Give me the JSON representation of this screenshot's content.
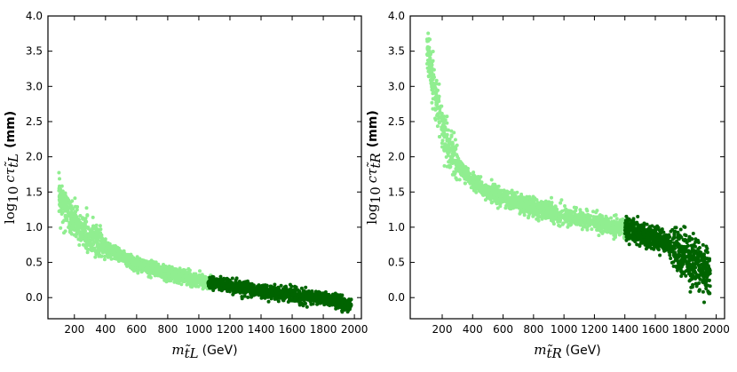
{
  "chart_data": [
    {
      "type": "scatter",
      "xlabel": "m_t̃L (GeV)",
      "xlabel_main": "m",
      "xlabel_sub": "t̃L",
      "xlabel_unit": "(GeV)",
      "ylabel_main": "log",
      "ylabel_base": "10",
      "ylabel_var": "cτ",
      "ylabel_sub": "t̃L",
      "ylabel_unit": "(mm)",
      "xlim": [
        30,
        2045
      ],
      "ylim": [
        -0.3,
        4.0
      ],
      "xticks": [
        200,
        400,
        600,
        800,
        1000,
        1200,
        1400,
        1600,
        1800,
        2000
      ],
      "yticks": [
        0.0,
        0.5,
        1.0,
        1.5,
        2.0,
        2.5,
        3.0,
        3.5,
        4.0
      ],
      "grid": false,
      "colors": {
        "light": "#90ee90",
        "dark": "#006400"
      },
      "trend": [
        [
          100,
          1.45
        ],
        [
          200,
          1.05
        ],
        [
          300,
          0.85
        ],
        [
          400,
          0.7
        ],
        [
          600,
          0.47
        ],
        [
          800,
          0.35
        ],
        [
          1000,
          0.25
        ],
        [
          1200,
          0.17
        ],
        [
          1400,
          0.09
        ],
        [
          1600,
          0.04
        ],
        [
          1800,
          -0.01
        ],
        [
          1980,
          -0.12
        ]
      ],
      "series": [
        {
          "color_key": "light",
          "x_range": [
            100,
            1080
          ],
          "count": 1500
        },
        {
          "color_key": "dark",
          "x_range": [
            1060,
            1980
          ],
          "count": 1300
        }
      ]
    },
    {
      "type": "scatter",
      "xlabel": "m_t̃R (GeV)",
      "xlabel_main": "m",
      "xlabel_sub": "t̃R",
      "xlabel_unit": "(GeV)",
      "ylabel_main": "log",
      "ylabel_base": "10",
      "ylabel_var": "cτ",
      "ylabel_sub": "t̃R",
      "ylabel_unit": "(mm)",
      "xlim": [
        -10,
        2055
      ],
      "ylim": [
        -0.3,
        4.0
      ],
      "xticks": [
        200,
        400,
        600,
        800,
        1000,
        1200,
        1400,
        1600,
        1800,
        2000
      ],
      "yticks": [
        0.0,
        0.5,
        1.0,
        1.5,
        2.0,
        2.5,
        3.0,
        3.5,
        4.0
      ],
      "grid": false,
      "colors": {
        "light": "#90ee90",
        "dark": "#006400"
      },
      "trend": [
        [
          100,
          3.55
        ],
        [
          150,
          2.95
        ],
        [
          200,
          2.4
        ],
        [
          250,
          2.1
        ],
        [
          300,
          1.9
        ],
        [
          400,
          1.65
        ],
        [
          500,
          1.5
        ],
        [
          600,
          1.4
        ],
        [
          800,
          1.28
        ],
        [
          1000,
          1.15
        ],
        [
          1200,
          1.08
        ],
        [
          1400,
          0.98
        ],
        [
          1600,
          0.85
        ],
        [
          1800,
          0.6
        ],
        [
          1950,
          0.35
        ]
      ],
      "series": [
        {
          "color_key": "light",
          "x_range": [
            100,
            1480
          ],
          "count": 1800
        },
        {
          "color_key": "dark",
          "x_range": [
            1400,
            1960
          ],
          "count": 900
        }
      ]
    }
  ]
}
